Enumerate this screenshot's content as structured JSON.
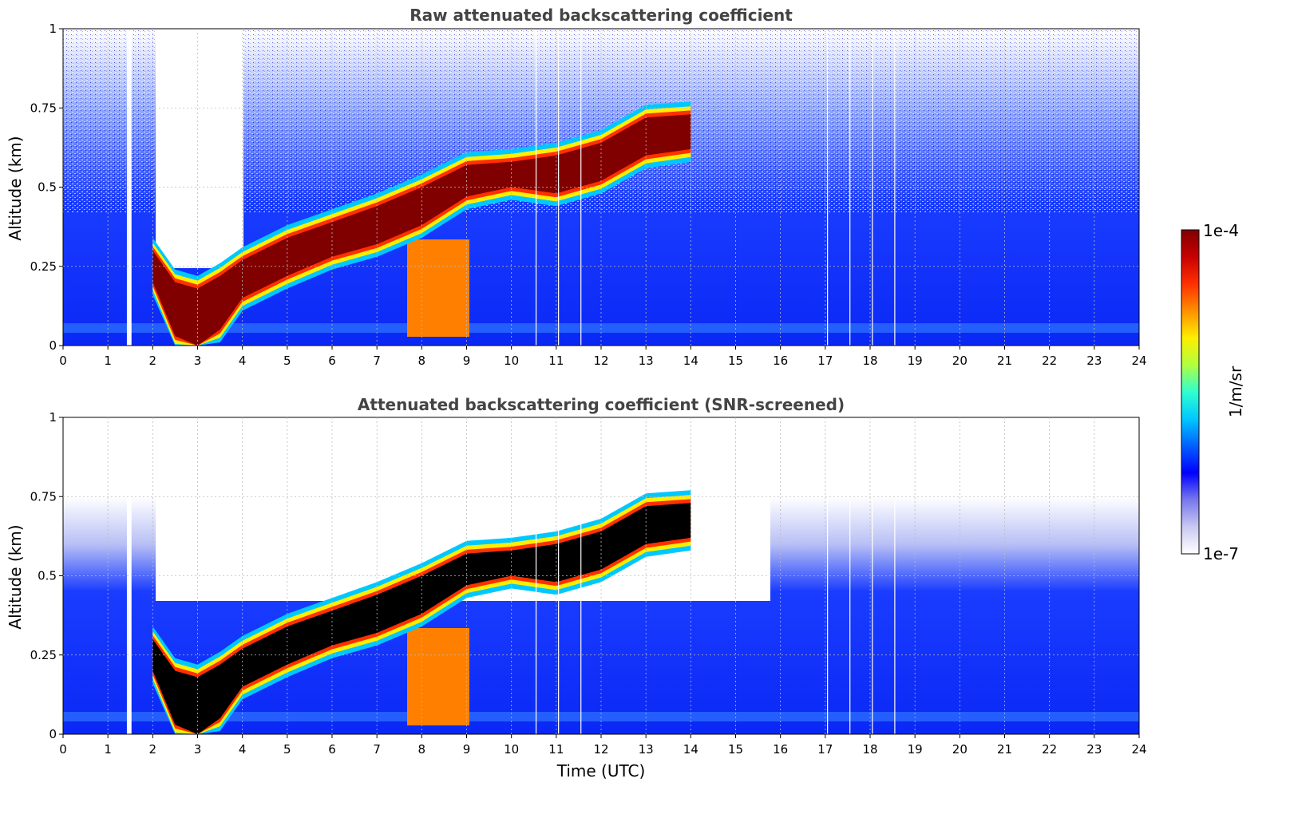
{
  "chart_data": [
    {
      "type": "heatmap",
      "title": "Raw attenuated backscattering coefficient",
      "xlabel": "",
      "ylabel": "Altitude (km)",
      "xlim": [
        0,
        24
      ],
      "ylim": [
        0,
        1
      ],
      "xticks": [
        "0",
        "1",
        "2",
        "3",
        "4",
        "5",
        "6",
        "7",
        "8",
        "9",
        "10",
        "11",
        "12",
        "13",
        "14",
        "15",
        "16",
        "17",
        "18",
        "19",
        "20",
        "21",
        "22",
        "23",
        "24"
      ],
      "yticks": [
        "0",
        "0.25",
        "0.5",
        "0.75",
        "1"
      ],
      "grid": true,
      "colorscale": "jet",
      "layer_top_km": {
        "time_h": [
          2.0,
          2.5,
          3.0,
          3.5,
          4.0,
          5.0,
          6.0,
          7.0,
          8.0,
          9.0,
          10.0,
          11.0,
          12.0,
          13.0,
          14.0
        ],
        "value_km": [
          0.3,
          0.2,
          0.18,
          0.22,
          0.27,
          0.34,
          0.39,
          0.44,
          0.5,
          0.57,
          0.58,
          0.6,
          0.64,
          0.72,
          0.73
        ]
      },
      "layer_base_km": {
        "time_h": [
          2.0,
          2.5,
          3.0,
          3.5,
          4.0,
          5.0,
          6.0,
          7.0,
          8.0,
          9.0,
          10.0,
          11.0,
          12.0,
          13.0,
          14.0
        ],
        "value_km": [
          0.2,
          0.03,
          0.0,
          0.05,
          0.15,
          0.22,
          0.28,
          0.32,
          0.38,
          0.47,
          0.5,
          0.48,
          0.52,
          0.6,
          0.62
        ]
      },
      "data_gaps_time_h": [
        1.45,
        1.5,
        10.55,
        11.05,
        11.55,
        17.05,
        17.55,
        18.05,
        18.55
      ]
    },
    {
      "type": "heatmap",
      "title": "Attenuated backscattering coefficient (SNR-screened)",
      "xlabel": "Time (UTC)",
      "ylabel": "Altitude (km)",
      "xlim": [
        0,
        24
      ],
      "ylim": [
        0,
        1
      ],
      "xticks": [
        "0",
        "1",
        "2",
        "3",
        "4",
        "5",
        "6",
        "7",
        "8",
        "9",
        "10",
        "11",
        "12",
        "13",
        "14",
        "15",
        "16",
        "17",
        "18",
        "19",
        "20",
        "21",
        "22",
        "23",
        "24"
      ],
      "yticks": [
        "0",
        "0.25",
        "0.5",
        "0.75",
        "1"
      ],
      "grid": true,
      "colorscale": "jet"
    }
  ],
  "colorbar": {
    "label": "1/m/sr",
    "max_label": "1e-4",
    "min_label": "1e-7",
    "stops": [
      "#ffffff",
      "#c9c9f2",
      "#7777ee",
      "#0000ff",
      "#0060ff",
      "#00c8ff",
      "#30ffd0",
      "#b0ff40",
      "#ffee00",
      "#ff9000",
      "#ff3000",
      "#c80000",
      "#800000"
    ]
  }
}
